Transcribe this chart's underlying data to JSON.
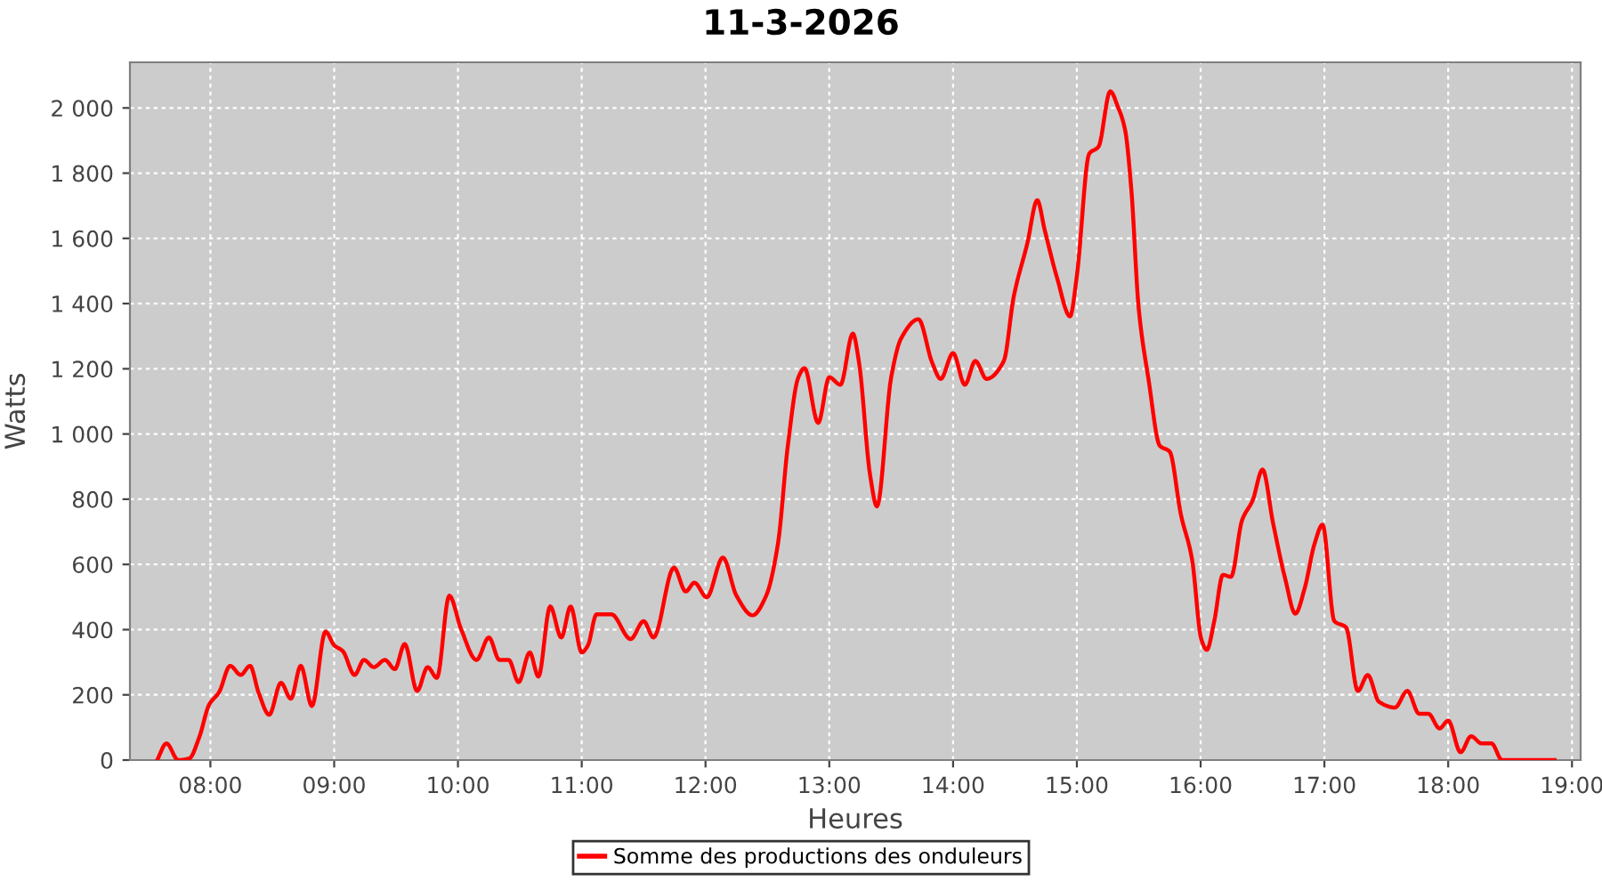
{
  "chart_data": {
    "type": "line",
    "title": "11-3-2026",
    "xlabel": "Heures",
    "ylabel": "Watts",
    "x": [
      7.57,
      7.645,
      7.74,
      7.83,
      7.91,
      7.99,
      8.07,
      8.16,
      8.245,
      8.32,
      8.39,
      8.475,
      8.57,
      8.65,
      8.73,
      8.82,
      8.93,
      9.0,
      9.07,
      9.165,
      9.24,
      9.32,
      9.41,
      9.49,
      9.57,
      9.67,
      9.755,
      9.83,
      9.93,
      10.025,
      10.15,
      10.25,
      10.335,
      10.41,
      10.49,
      10.58,
      10.65,
      10.745,
      10.835,
      10.91,
      11.0,
      11.05,
      11.12,
      11.24,
      11.395,
      11.5,
      11.58,
      11.745,
      11.84,
      11.91,
      12.01,
      12.14,
      12.25,
      12.38,
      12.49,
      12.585,
      12.665,
      12.75,
      12.8,
      12.91,
      13.0,
      13.09,
      13.19,
      13.24,
      13.33,
      13.385,
      13.5,
      13.58,
      13.72,
      13.83,
      13.9,
      14.0,
      14.095,
      14.18,
      14.27,
      14.41,
      14.49,
      14.6,
      14.68,
      14.74,
      14.84,
      14.945,
      15.0,
      15.1,
      15.175,
      15.27,
      15.33,
      15.39,
      15.44,
      15.5,
      15.58,
      15.67,
      15.75,
      15.84,
      15.93,
      16.005,
      16.05,
      16.11,
      16.18,
      16.245,
      16.335,
      16.42,
      16.5,
      16.585,
      16.685,
      16.765,
      16.84,
      16.92,
      16.985,
      17.08,
      17.175,
      17.27,
      17.35,
      17.44,
      17.57,
      17.67,
      17.765,
      17.84,
      17.93,
      18.0,
      18.1,
      18.185,
      18.27,
      18.35,
      18.435,
      18.86
    ],
    "series": [
      {
        "name": "Somme des productions des onduleurs",
        "color": "#ff0000",
        "values": [
          0,
          51,
          0,
          5,
          70,
          170,
          208,
          289,
          261,
          289,
          206,
          139,
          237,
          188,
          289,
          166,
          394,
          352,
          334,
          261,
          307,
          285,
          307,
          279,
          356,
          212,
          285,
          252,
          504,
          402,
          307,
          376,
          307,
          307,
          239,
          330,
          256,
          471,
          376,
          471,
          330,
          352,
          447,
          447,
          371,
          426,
          376,
          590,
          517,
          544,
          499,
          621,
          504,
          444,
          504,
          663,
          964,
          1174,
          1202,
          1034,
          1174,
          1151,
          1308,
          1220,
          873,
          778,
          1174,
          1293,
          1352,
          1220,
          1169,
          1248,
          1151,
          1224,
          1169,
          1224,
          1421,
          1585,
          1717,
          1626,
          1479,
          1361,
          1485,
          1860,
          1881,
          2051,
          2005,
          1932,
          1750,
          1384,
          1165,
          964,
          946,
          754,
          617,
          371,
          338,
          426,
          568,
          562,
          736,
          796,
          891,
          727,
          553,
          449,
          526,
          663,
          722,
          426,
          407,
          212,
          261,
          179,
          161,
          212,
          142,
          142,
          97,
          121,
          24,
          73,
          51,
          51,
          0,
          0
        ]
      }
    ],
    "xlim": [
      7.35,
      19.07
    ],
    "xticks": [
      {
        "value": 8,
        "label": "08:00"
      },
      {
        "value": 9,
        "label": "09:00"
      },
      {
        "value": 10,
        "label": "10:00"
      },
      {
        "value": 11,
        "label": "11:00"
      },
      {
        "value": 12,
        "label": "12:00"
      },
      {
        "value": 13,
        "label": "13:00"
      },
      {
        "value": 14,
        "label": "14:00"
      },
      {
        "value": 15,
        "label": "15:00"
      },
      {
        "value": 16,
        "label": "16:00"
      },
      {
        "value": 17,
        "label": "17:00"
      },
      {
        "value": 18,
        "label": "18:00"
      },
      {
        "value": 19,
        "label": "19:00"
      }
    ],
    "ylim": [
      0,
      2140
    ],
    "yticks": [
      0,
      200,
      400,
      600,
      800,
      {
        "value": 1000,
        "label": "1 000"
      },
      {
        "value": 1200,
        "label": "1 200"
      },
      {
        "value": 1400,
        "label": "1 400"
      },
      {
        "value": 1600,
        "label": "1 600"
      },
      {
        "value": 1800,
        "label": "1 800"
      },
      {
        "value": 2000,
        "label": "2 000"
      }
    ],
    "grid": true,
    "legend": "bottom",
    "marker": "none",
    "line_style": "solid"
  }
}
